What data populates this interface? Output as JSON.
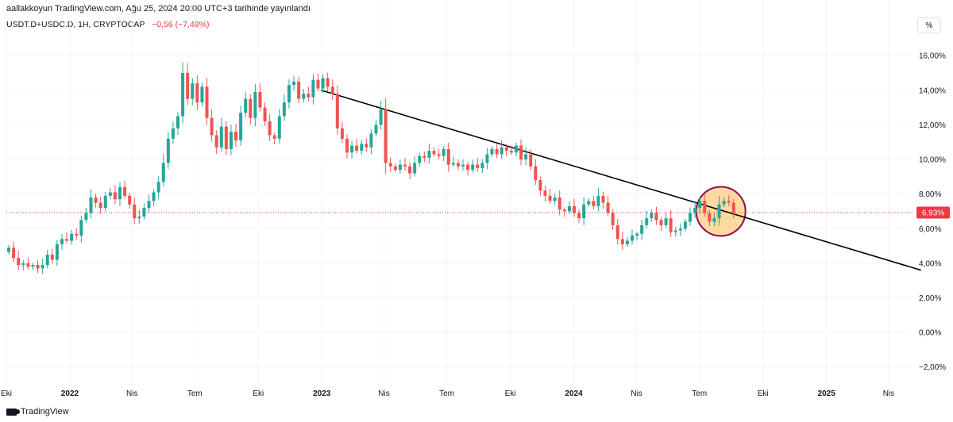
{
  "header": {
    "attribution": "aallakkoyun TradingView.com, Ağu 25, 2024 20:00 UTC+3 tarihinde yayınlandı"
  },
  "legend": {
    "symbol": "USDT.D+USDC.D, 1H, CRYPTOCAP",
    "change": "−0,56 (−7,48%)"
  },
  "controls": {
    "scale_mode_label": "%"
  },
  "footer": {
    "brand": "TradingView"
  },
  "colors": {
    "up": "#26a69a",
    "down": "#ef5350",
    "last_price": "#f23645",
    "trendline": "#000000",
    "highlight_fill": "#ffcc80",
    "highlight_stroke": "#880e4f"
  },
  "chart_data": {
    "type": "candlestick",
    "x_scale": "date",
    "x_range": [
      "2021-10-01",
      "2025-05-01"
    ],
    "ylim": [
      -2.7,
      17.2
    ],
    "y_ticks": [
      16,
      14,
      12,
      10,
      8,
      6,
      4,
      2,
      0,
      -2
    ],
    "y_tick_labels": [
      "16,00%",
      "14,00%",
      "12,00%",
      "10,00%",
      "8,00%",
      "6,00%",
      "4,00%",
      "2,00%",
      "0,00%",
      "−2,00%"
    ],
    "x_ticks": [
      {
        "date": "2021-10-01",
        "label": "Eki"
      },
      {
        "date": "2022-01-01",
        "label": "2022"
      },
      {
        "date": "2022-04-01",
        "label": "Nis"
      },
      {
        "date": "2022-07-01",
        "label": "Tem"
      },
      {
        "date": "2022-10-01",
        "label": "Eki"
      },
      {
        "date": "2023-01-01",
        "label": "2023"
      },
      {
        "date": "2023-04-01",
        "label": "Nis"
      },
      {
        "date": "2023-07-01",
        "label": "Tem"
      },
      {
        "date": "2023-10-01",
        "label": "Eki"
      },
      {
        "date": "2024-01-01",
        "label": "2024"
      },
      {
        "date": "2024-04-01",
        "label": "Nis"
      },
      {
        "date": "2024-07-01",
        "label": "Tem"
      },
      {
        "date": "2024-10-01",
        "label": "Eki"
      },
      {
        "date": "2025-01-01",
        "label": "2025"
      },
      {
        "date": "2025-04-01",
        "label": "Nis"
      }
    ],
    "last_price": 6.93,
    "last_price_label": "6,93%",
    "trendline": {
      "start": {
        "date": "2022-12-31",
        "value": 14.0
      },
      "end": {
        "date": "2025-05-18",
        "value": 3.6
      }
    },
    "highlight": {
      "date": "2024-08-01",
      "value": 7.0
    },
    "candle_start": "2021-10-01",
    "candle_step_days": 7,
    "closes": [
      4.9,
      4.3,
      3.9,
      4.0,
      3.8,
      3.9,
      3.7,
      3.9,
      4.5,
      4.2,
      5.1,
      5.4,
      5.3,
      5.7,
      5.6,
      6.5,
      6.9,
      7.8,
      7.5,
      7.2,
      7.9,
      8.1,
      7.7,
      8.4,
      7.9,
      7.4,
      6.6,
      6.7,
      7.2,
      7.6,
      8.1,
      8.7,
      9.8,
      11.2,
      11.8,
      12.5,
      15.0,
      13.5,
      14.4,
      13.3,
      14.2,
      12.4,
      11.4,
      10.7,
      11.9,
      10.6,
      11.6,
      11.1,
      12.7,
      13.5,
      12.4,
      13.9,
      13.0,
      12.2,
      11.4,
      11.2,
      12.5,
      13.3,
      14.3,
      14.5,
      13.5,
      13.8,
      13.6,
      14.6,
      14.1,
      14.7,
      14.2,
      13.8,
      11.8,
      11.2,
      10.4,
      10.8,
      10.5,
      10.9,
      10.7,
      11.5,
      12.0,
      12.9,
      9.8,
      9.6,
      9.4,
      9.7,
      9.6,
      9.2,
      9.8,
      10.2,
      10.1,
      10.5,
      10.3,
      10.2,
      10.6,
      9.7,
      9.8,
      9.6,
      9.7,
      9.4,
      9.7,
      9.5,
      9.8,
      10.3,
      10.6,
      10.3,
      10.7,
      10.5,
      10.4,
      10.8,
      10.0,
      10.3,
      9.6,
      8.8,
      8.2,
      7.9,
      7.6,
      7.8,
      7.1,
      7.0,
      7.3,
      6.9,
      6.6,
      7.4,
      7.6,
      7.3,
      7.9,
      7.5,
      6.9,
      6.2,
      5.4,
      5.1,
      5.3,
      5.6,
      5.7,
      6.2,
      6.6,
      6.9,
      6.5,
      6.2,
      6.6,
      5.8,
      5.9,
      6.0,
      6.4,
      6.9,
      7.2,
      7.6,
      6.9,
      6.4,
      6.6,
      7.4,
      7.6,
      7.5,
      6.93
    ]
  }
}
